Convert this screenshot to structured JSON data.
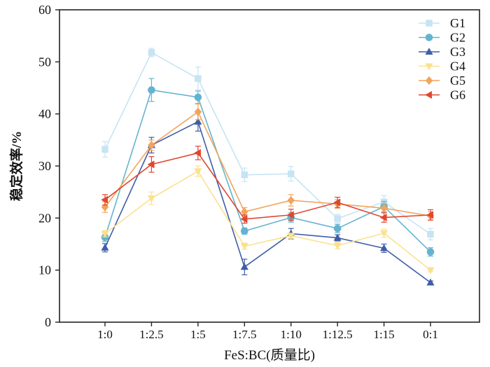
{
  "chart_data": {
    "type": "line",
    "xlabel": "FeS:BC(质量比)",
    "ylabel": "稳定效率/%",
    "categories": [
      "1:0",
      "1:2.5",
      "1:5",
      "1:7.5",
      "1:10",
      "1:12.5",
      "1:15",
      "0:1"
    ],
    "ylim": [
      0,
      60
    ],
    "yticks": [
      "0",
      "10",
      "20",
      "30",
      "40",
      "50",
      "60"
    ],
    "legend_position": "top-right",
    "grid": false,
    "series": [
      {
        "name": "G1",
        "color": "#c6e4f3",
        "marker": "square",
        "values": [
          33.2,
          51.8,
          46.8,
          28.3,
          28.5,
          19.9,
          23.1,
          16.9
        ],
        "errors": [
          1.5,
          0.8,
          2.2,
          1.3,
          1.4,
          0.8,
          1.2,
          1.1
        ]
      },
      {
        "name": "G2",
        "color": "#64b4cf",
        "marker": "circle",
        "values": [
          16.3,
          44.6,
          43.2,
          17.5,
          20.1,
          18.0,
          22.2,
          13.5
        ],
        "errors": [
          0.8,
          2.2,
          1.2,
          0.6,
          0.9,
          0.8,
          1.0,
          0.8
        ]
      },
      {
        "name": "G3",
        "color": "#3f5da8",
        "marker": "triangle-up",
        "values": [
          14.3,
          34.0,
          38.5,
          10.6,
          17.0,
          16.2,
          14.2,
          7.6
        ],
        "errors": [
          0.8,
          1.5,
          1.8,
          1.5,
          1.0,
          0.6,
          0.8,
          0.3
        ]
      },
      {
        "name": "G4",
        "color": "#fbe18f",
        "marker": "triangle-down",
        "values": [
          17.0,
          23.8,
          29.0,
          14.6,
          16.6,
          14.7,
          17.1,
          10.0
        ],
        "errors": [
          0.6,
          1.2,
          1.0,
          0.6,
          0.5,
          0.6,
          0.8,
          0.3
        ]
      },
      {
        "name": "G5",
        "color": "#f2a45c",
        "marker": "diamond",
        "values": [
          22.1,
          34.0,
          40.4,
          21.2,
          23.4,
          22.7,
          21.9,
          20.4
        ],
        "errors": [
          1.0,
          1.0,
          1.5,
          0.8,
          1.1,
          0.8,
          0.9,
          0.8
        ]
      },
      {
        "name": "G6",
        "color": "#e0472f",
        "marker": "triangle-left",
        "values": [
          23.5,
          30.3,
          32.5,
          19.8,
          20.6,
          23.0,
          20.1,
          20.6
        ],
        "errors": [
          1.0,
          1.5,
          1.3,
          0.8,
          1.1,
          1.0,
          0.9,
          1.0
        ]
      }
    ]
  }
}
